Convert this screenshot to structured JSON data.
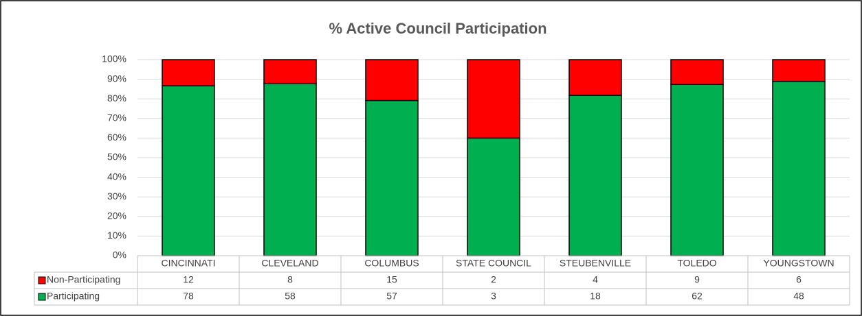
{
  "chart_data": {
    "type": "bar",
    "stacked": "percent",
    "title": "% Active Council Participation",
    "categories": [
      "CINCINNATI",
      "CLEVELAND",
      "COLUMBUS",
      "STATE COUNCIL",
      "STEUBENVILLE",
      "TOLEDO",
      "YOUNGSTOWN"
    ],
    "series": [
      {
        "name": "Non-Participating",
        "color": "#ff0000",
        "values": [
          12,
          8,
          15,
          2,
          4,
          9,
          6
        ]
      },
      {
        "name": "Participating",
        "color": "#00b050",
        "values": [
          78,
          58,
          57,
          3,
          18,
          62,
          48
        ]
      }
    ],
    "ylim": [
      0,
      100
    ],
    "yticks": [
      {
        "value": 0,
        "label": "0%"
      },
      {
        "value": 10,
        "label": "10%"
      },
      {
        "value": 20,
        "label": "20%"
      },
      {
        "value": 30,
        "label": "30%"
      },
      {
        "value": 40,
        "label": "40%"
      },
      {
        "value": 50,
        "label": "50%"
      },
      {
        "value": 60,
        "label": "60%"
      },
      {
        "value": 70,
        "label": "70%"
      },
      {
        "value": 80,
        "label": "80%"
      },
      {
        "value": 90,
        "label": "90%"
      },
      {
        "value": 100,
        "label": "100%"
      }
    ],
    "grid": true,
    "legend": "table"
  }
}
